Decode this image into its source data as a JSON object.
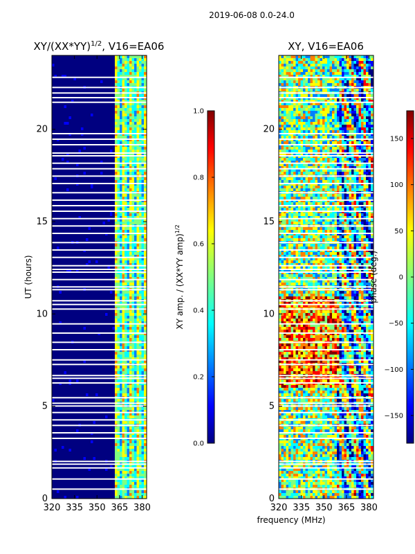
{
  "figure": {
    "suptitle": "2019-06-08 0.0-24.0",
    "shared_xlabel": "frequency (MHz)"
  },
  "colors": {
    "jet": [
      "#000080",
      "#0000ff",
      "#0080ff",
      "#00ffff",
      "#80ff80",
      "#ffff00",
      "#ff8000",
      "#ff0000",
      "#800000"
    ],
    "gap": "#ffffff"
  },
  "chart_data": [
    {
      "type": "heatmap",
      "title_prefix": "XY/(XX*YY)",
      "title_sup": "1/2",
      "title_suffix": ", V16=EA06",
      "xlabel": "frequency (MHz)",
      "ylabel": "UT (hours)",
      "xlim": [
        320,
        383
      ],
      "ylim": [
        0,
        24
      ],
      "xticks": [
        320,
        335,
        350,
        365,
        380
      ],
      "yticks": [
        0,
        5,
        10,
        15,
        20
      ],
      "colorbar": {
        "label_main": "XY amp. / (XX*YY amp)",
        "label_sup": "1/2",
        "range": [
          0.0,
          1.0
        ],
        "ticks": [
          "0.0",
          "0.2",
          "0.4",
          "0.6",
          "0.8",
          "1.0"
        ],
        "tick_values": [
          0.0,
          0.2,
          0.4,
          0.6,
          0.8,
          1.0
        ]
      },
      "description_of_pattern": "mostly near 0 below 360 MHz; elevated amplitude bands between 360 and 383 MHz"
    },
    {
      "type": "heatmap",
      "title": "XY, V16=EA06",
      "xlabel": "frequency (MHz)",
      "ylabel": "",
      "xlim": [
        320,
        383
      ],
      "ylim": [
        0,
        24
      ],
      "xticks": [
        320,
        335,
        350,
        365,
        380
      ],
      "yticks": [
        0,
        5,
        10,
        15,
        20
      ],
      "colorbar": {
        "label": "phase (deg.)",
        "range": [
          -180,
          180
        ],
        "ticks": [
          "150",
          "100",
          "50",
          "0",
          "−50",
          "−100",
          "−150"
        ],
        "tick_values": [
          150,
          100,
          50,
          0,
          -50,
          -100,
          -150
        ]
      }
    }
  ],
  "gap_rows_hours": [
    0.55,
    1.1,
    1.7,
    1.9,
    2.05,
    3.3,
    3.6,
    4.0,
    4.3,
    4.7,
    5.05,
    5.2,
    5.5,
    6.3,
    6.55,
    6.7,
    7.3,
    7.55,
    8.1,
    8.5,
    9.0,
    9.5,
    10.3,
    10.55,
    10.75,
    11.35,
    11.5,
    11.9,
    12.3,
    12.45,
    12.65,
    13.1,
    13.5,
    13.9,
    14.4,
    14.8,
    15.2,
    15.6,
    15.9,
    16.2,
    16.6,
    17.1,
    17.5,
    17.9,
    18.2,
    18.6,
    18.75,
    19.2,
    19.5,
    19.8,
    21.5,
    21.75,
    22.0,
    22.3,
    22.85
  ]
}
